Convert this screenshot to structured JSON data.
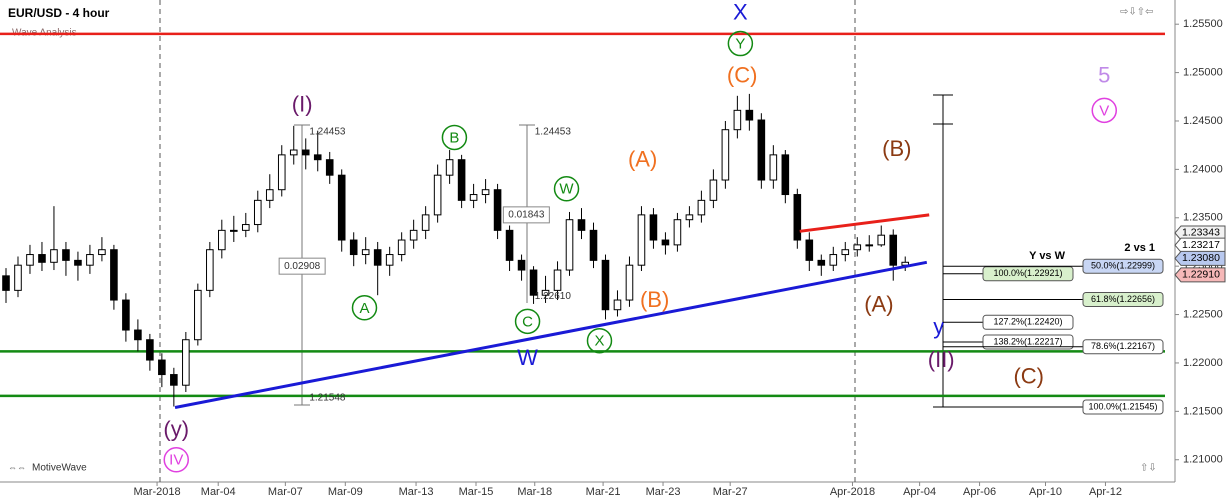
{
  "chart_data": {
    "type": "candlestick",
    "title": "EUR/USD - 4 hour",
    "subtitle": "Wave Analysis",
    "footer": "MotiveWave",
    "up_color": "#ffffff",
    "down_color": "#000000",
    "x": [
      0,
      1,
      2,
      3,
      4,
      5,
      6,
      7,
      8,
      9,
      10,
      11,
      12,
      13,
      14,
      15,
      16,
      17,
      18,
      19,
      20,
      21,
      22,
      23,
      24,
      25,
      26,
      27,
      28,
      29,
      30,
      31,
      32,
      33,
      34,
      35,
      36,
      37,
      38,
      39,
      40,
      41,
      42,
      43,
      44,
      45,
      46,
      47,
      48,
      49,
      50,
      51,
      52,
      53,
      54,
      55,
      56,
      57,
      58,
      59,
      60,
      61,
      62,
      63,
      64,
      65,
      66,
      67,
      68,
      69,
      70,
      71,
      72,
      73,
      74,
      75
    ],
    "open": [
      1.229,
      1.2275,
      1.2301,
      1.2312,
      1.2304,
      1.2317,
      1.2306,
      1.2301,
      1.2312,
      1.2317,
      1.2265,
      1.2234,
      1.2224,
      1.2203,
      1.2188,
      1.2177,
      1.2224,
      1.2275,
      1.2317,
      1.2337,
      1.2337,
      1.2343,
      1.2368,
      1.2379,
      1.2415,
      1.242,
      1.2415,
      1.241,
      1.2394,
      1.2327,
      1.2312,
      1.2317,
      1.2301,
      1.2312,
      1.2327,
      1.2337,
      1.2353,
      1.2394,
      1.241,
      1.2368,
      1.2374,
      1.2379,
      1.2337,
      1.2306,
      1.2296,
      1.227,
      1.2275,
      1.2296,
      1.2348,
      1.2337,
      1.2306,
      1.2255,
      1.2265,
      1.2301,
      1.2353,
      1.2327,
      1.2322,
      1.2348,
      1.2353,
      1.2368,
      1.2389,
      1.2441,
      1.2461,
      1.2451,
      1.2389,
      1.2415,
      1.2374,
      1.2327,
      1.2306,
      1.2301,
      1.2312,
      1.2317,
      1.2322,
      1.2322,
      1.2332,
      1.2301
    ],
    "high": [
      1.2298,
      1.231,
      1.2322,
      1.2325,
      1.2362,
      1.2325,
      1.2315,
      1.2322,
      1.233,
      1.2322,
      1.2272,
      1.2245,
      1.223,
      1.221,
      1.2195,
      1.2232,
      1.2282,
      1.2325,
      1.2348,
      1.2352,
      1.2355,
      1.2378,
      1.2395,
      1.2425,
      1.2445,
      1.2432,
      1.244,
      1.2418,
      1.24,
      1.2335,
      1.233,
      1.2325,
      1.232,
      1.2335,
      1.2348,
      1.2362,
      1.2405,
      1.242,
      1.2415,
      1.2385,
      1.239,
      1.2385,
      1.2342,
      1.2312,
      1.23,
      1.229,
      1.2305,
      1.2356,
      1.236,
      1.2345,
      1.2312,
      1.2275,
      1.231,
      1.2362,
      1.236,
      1.2335,
      1.2355,
      1.2362,
      1.2378,
      1.24,
      1.245,
      1.2476,
      1.2478,
      1.2458,
      1.2425,
      1.242,
      1.238,
      1.2335,
      1.2312,
      1.232,
      1.2325,
      1.233,
      1.2332,
      1.2342,
      1.2338,
      1.231
    ],
    "low": [
      1.2262,
      1.2268,
      1.2292,
      1.2295,
      1.2296,
      1.229,
      1.2285,
      1.2292,
      1.2305,
      1.2255,
      1.2222,
      1.2212,
      1.2192,
      1.2175,
      1.2155,
      1.217,
      1.2218,
      1.2268,
      1.2308,
      1.2325,
      1.233,
      1.2335,
      1.236,
      1.2372,
      1.2405,
      1.24,
      1.2398,
      1.2385,
      1.2315,
      1.23,
      1.2302,
      1.227,
      1.229,
      1.2305,
      1.2318,
      1.2328,
      1.2345,
      1.2385,
      1.236,
      1.236,
      1.2365,
      1.2328,
      1.2295,
      1.2285,
      1.2261,
      1.2262,
      1.2265,
      1.229,
      1.2328,
      1.2298,
      1.2245,
      1.2248,
      1.2258,
      1.2295,
      1.2318,
      1.2312,
      1.2315,
      1.234,
      1.2345,
      1.236,
      1.238,
      1.2432,
      1.244,
      1.238,
      1.238,
      1.2365,
      1.2318,
      1.2295,
      1.229,
      1.2295,
      1.2305,
      1.231,
      1.2315,
      1.232,
      1.2285,
      1.2295
    ],
    "close": [
      1.2275,
      1.2301,
      1.2312,
      1.2304,
      1.2317,
      1.2306,
      1.2301,
      1.2312,
      1.2317,
      1.2265,
      1.2234,
      1.2224,
      1.2203,
      1.2188,
      1.2177,
      1.2224,
      1.2275,
      1.2317,
      1.2337,
      1.2337,
      1.2343,
      1.2368,
      1.2379,
      1.2415,
      1.242,
      1.2415,
      1.241,
      1.2394,
      1.2327,
      1.2312,
      1.2317,
      1.2301,
      1.2312,
      1.2327,
      1.2337,
      1.2353,
      1.2394,
      1.241,
      1.2368,
      1.2374,
      1.2379,
      1.2337,
      1.2306,
      1.2296,
      1.227,
      1.2275,
      1.2296,
      1.2348,
      1.2337,
      1.2306,
      1.2255,
      1.2265,
      1.2301,
      1.2353,
      1.2327,
      1.2322,
      1.2348,
      1.2353,
      1.2368,
      1.2389,
      1.2441,
      1.2461,
      1.2451,
      1.2389,
      1.2415,
      1.2374,
      1.2327,
      1.2306,
      1.2301,
      1.2312,
      1.2317,
      1.2322,
      1.2322,
      1.2332,
      1.2301,
      1.2304
    ],
    "xlim": [
      -0.5,
      97.5
    ],
    "ylim": [
      1.2077,
      1.2575
    ],
    "xticks": [
      {
        "value": 12.6,
        "label": "Mar-2018"
      },
      {
        "value": 17.7,
        "label": "Mar-04"
      },
      {
        "value": 23.3,
        "label": "Mar-07"
      },
      {
        "value": 28.3,
        "label": "Mar-09"
      },
      {
        "value": 34.2,
        "label": "Mar-13"
      },
      {
        "value": 39.2,
        "label": "Mar-15"
      },
      {
        "value": 44.1,
        "label": "Mar-18"
      },
      {
        "value": 49.8,
        "label": "Mar-21"
      },
      {
        "value": 54.8,
        "label": "Mar-23"
      },
      {
        "value": 60.4,
        "label": "Mar-27"
      },
      {
        "value": 70.6,
        "label": "Apr-2018"
      },
      {
        "value": 76.2,
        "label": "Apr-04"
      },
      {
        "value": 81.2,
        "label": "Apr-06"
      },
      {
        "value": 86.7,
        "label": "Apr-10"
      },
      {
        "value": 91.7,
        "label": "Apr-12"
      }
    ],
    "yticks": [
      {
        "value": 1.21,
        "label": "1.21000"
      },
      {
        "value": 1.215,
        "label": "1.21500"
      },
      {
        "value": 1.22,
        "label": "1.22000"
      },
      {
        "value": 1.225,
        "label": "1.22500"
      },
      {
        "value": 1.23,
        "label": "1.23000"
      },
      {
        "value": 1.235,
        "label": "1.23500"
      },
      {
        "value": 1.24,
        "label": "1.24000"
      },
      {
        "value": 1.245,
        "label": "1.24500"
      },
      {
        "value": 1.25,
        "label": "1.25000"
      },
      {
        "value": 1.255,
        "label": "1.25500"
      }
    ],
    "levels": [
      {
        "value": 1.254,
        "color": "#e8201a"
      },
      {
        "value": 1.2212,
        "color": "#138a13"
      },
      {
        "value": 1.2166,
        "color": "#138a13"
      }
    ],
    "trendlines": [
      {
        "color": "#1a1ad6",
        "x": [
          14.1,
          76.8
        ],
        "y": [
          1.2154,
          1.2304
        ]
      },
      {
        "color": "#e8201a",
        "x": [
          66.2,
          77.0
        ],
        "y": [
          1.2336,
          1.2353
        ]
      }
    ],
    "price_tags": [
      {
        "value": 1.23343,
        "label": "1.23343",
        "fill": "#f2f2f2"
      },
      {
        "value": 1.23217,
        "label": "1.23217",
        "fill": "#ffffff"
      },
      {
        "value": 1.2308,
        "label": "1.23080",
        "fill": "#b8c8ee"
      },
      {
        "value": 1.2291,
        "label": "1.22910",
        "fill": "#f6b8b8"
      }
    ],
    "annotations": [
      {
        "text": "X",
        "x": 61.25,
        "y": 1.2562,
        "color": "#1a1ad6",
        "circle": false
      },
      {
        "text": "Y",
        "x": 61.25,
        "y": 1.253,
        "color": "#138a13",
        "circle": true
      },
      {
        "text": "(C)",
        "x": 61.4,
        "y": 1.2497,
        "color": "#f07020",
        "circle": false
      },
      {
        "text": "(I)",
        "x": 24.7,
        "y": 1.2467,
        "color": "#6a1a6a",
        "circle": false
      },
      {
        "text": "B",
        "x": 37.4,
        "y": 1.2433,
        "color": "#138a13",
        "circle": true
      },
      {
        "text": "(A)",
        "x": 53.1,
        "y": 1.241,
        "color": "#f07020",
        "circle": false
      },
      {
        "text": "W",
        "x": 46.75,
        "y": 1.238,
        "color": "#138a13",
        "circle": true
      },
      {
        "text": "(B)",
        "x": 74.3,
        "y": 1.2421,
        "color": "#8b3a12",
        "circle": false
      },
      {
        "text": "5",
        "x": 91.6,
        "y": 1.2497,
        "color": "#c08ae8",
        "circle": false
      },
      {
        "text": "V",
        "x": 91.6,
        "y": 1.2461,
        "color": "#e040e0",
        "circle": true
      },
      {
        "text": "A",
        "x": 29.9,
        "y": 1.2257,
        "color": "#138a13",
        "circle": true
      },
      {
        "text": "C",
        "x": 43.5,
        "y": 1.2243,
        "color": "#138a13",
        "circle": true
      },
      {
        "text": "(B)",
        "x": 54.1,
        "y": 1.2265,
        "color": "#f07020",
        "circle": false
      },
      {
        "text": "X",
        "x": 49.5,
        "y": 1.2223,
        "color": "#138a13",
        "circle": true
      },
      {
        "text": "W",
        "x": 43.5,
        "y": 1.2205,
        "color": "#1a1ad6",
        "circle": false
      },
      {
        "text": "(A)",
        "x": 72.8,
        "y": 1.226,
        "color": "#8b3a12",
        "circle": false
      },
      {
        "text": "y",
        "x": 77.8,
        "y": 1.2237,
        "color": "#1a1ad6",
        "circle": false
      },
      {
        "text": "(II)",
        "x": 78.0,
        "y": 1.2203,
        "color": "#6a1a6a",
        "circle": false
      },
      {
        "text": "(C)",
        "x": 85.3,
        "y": 1.2186,
        "color": "#8b3a12",
        "circle": false
      },
      {
        "text": "(y)",
        "x": 14.2,
        "y": 1.2131,
        "color": "#6a1a6a",
        "circle": false
      },
      {
        "text": "IV",
        "x": 14.2,
        "y": 1.21,
        "color": "#e040e0",
        "circle": true
      }
    ],
    "tool_labels": [
      {
        "text": "1.24453",
        "x": 25.3,
        "y": 1.2439,
        "boxed": false
      },
      {
        "text": "0.02908",
        "x": 24.7,
        "y": 1.23,
        "boxed": true
      },
      {
        "text": "1.21548",
        "x": 25.3,
        "y": 1.2164,
        "boxed": false
      },
      {
        "text": "1.24453",
        "x": 44.1,
        "y": 1.2439,
        "boxed": false
      },
      {
        "text": "0.01843",
        "x": 43.4,
        "y": 1.2353,
        "boxed": true
      },
      {
        "text": "1.22610",
        "x": 44.1,
        "y": 1.2269,
        "boxed": false
      }
    ],
    "fib_groups": [
      {
        "title": "Y vs W",
        "levels": [
          {
            "label": "100.0%(1.22921)",
            "value": 1.22921,
            "fill": "#d8f0cc"
          },
          {
            "label": "127.2%(1.22420)",
            "value": 1.2242,
            "fill": "#ffffff"
          },
          {
            "label": "138.2%(1.22217)",
            "value": 1.22217,
            "fill": "#ffffff"
          }
        ]
      },
      {
        "title": "2 vs 1",
        "levels": [
          {
            "label": "50.0%(1.22999)",
            "value": 1.22999,
            "fill": "#c8d6f4"
          },
          {
            "label": "61.8%(1.22656)",
            "value": 1.22656,
            "fill": "#d8f0cc"
          },
          {
            "label": "78.6%(1.22167)",
            "value": 1.22167,
            "fill": "#ffffff"
          },
          {
            "label": "100.0%(1.21545)",
            "value": 1.21545,
            "fill": "#ffffff"
          }
        ]
      }
    ]
  }
}
